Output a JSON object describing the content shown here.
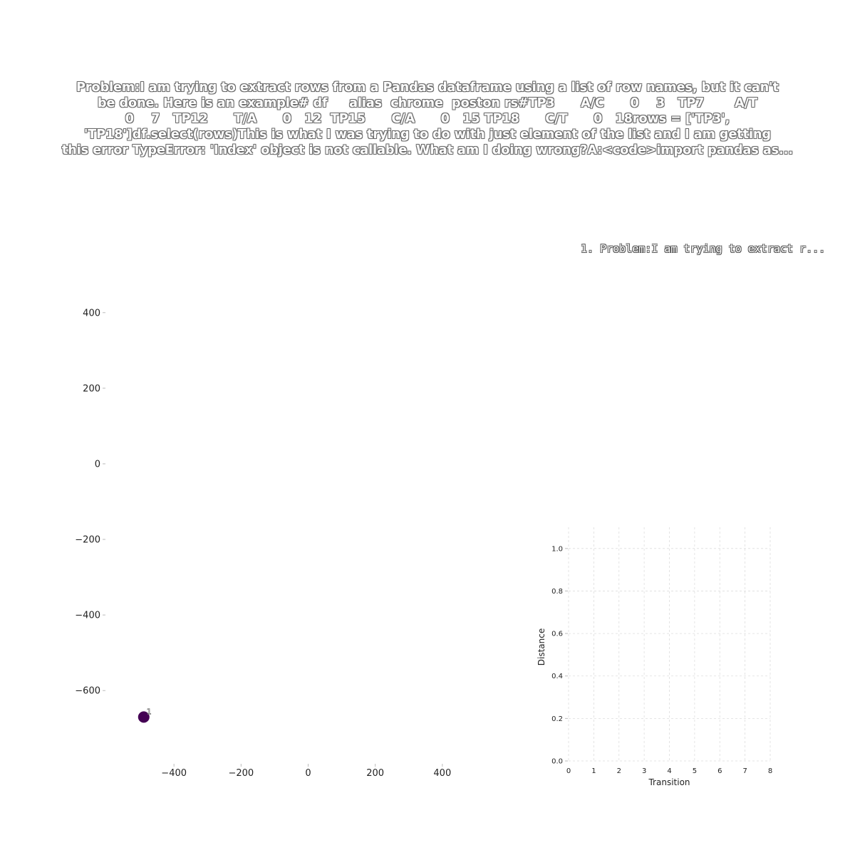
{
  "title_lines": [
    "Problem:I am trying to extract rows from a Pandas dataframe using a list of row names, but it can't",
    "be done. Here is an example# df     alias  chrome  poston rs#TP3      A/C      0    3   TP7       A/T",
    "0    7   TP12      T/A      0   12  TP15      C/A      0   15 TP18      C/T      0   18rows = ['TP3',",
    "'TP18']df.select(rows)This is what I was trying to do with just element of the list and I am getting",
    "this error TypeError: 'Index' object is not callable. What am I doing wrong?A:<code>import pandas as..."
  ],
  "legend": "1. Problem:I am trying to extract r...",
  "colors": {
    "point": "#440154",
    "grid": "#dddddd",
    "axis": "#222222"
  },
  "chart_data": [
    {
      "type": "scatter",
      "x_ticks": [
        -400,
        -200,
        0,
        200,
        400
      ],
      "y_ticks": [
        -600,
        -400,
        -200,
        0,
        200,
        400
      ],
      "xlim": [
        -600,
        600
      ],
      "ylim": [
        -790,
        590
      ],
      "grid": false,
      "points": [
        {
          "x": -490,
          "y": -670,
          "label": "1"
        }
      ]
    },
    {
      "type": "line",
      "xlabel": "Transition",
      "ylabel": "Distance",
      "x_ticks": [
        0,
        1,
        2,
        3,
        4,
        5,
        6,
        7,
        8
      ],
      "y_ticks": [
        0.0,
        0.2,
        0.4,
        0.6,
        0.8,
        1.0
      ],
      "y_tick_labels": [
        "0.0",
        "0.2",
        "0.4",
        "0.6",
        "0.8",
        "1.0"
      ],
      "xlim": [
        0,
        8
      ],
      "ylim": [
        0,
        1.1
      ],
      "grid": true,
      "series": []
    }
  ]
}
